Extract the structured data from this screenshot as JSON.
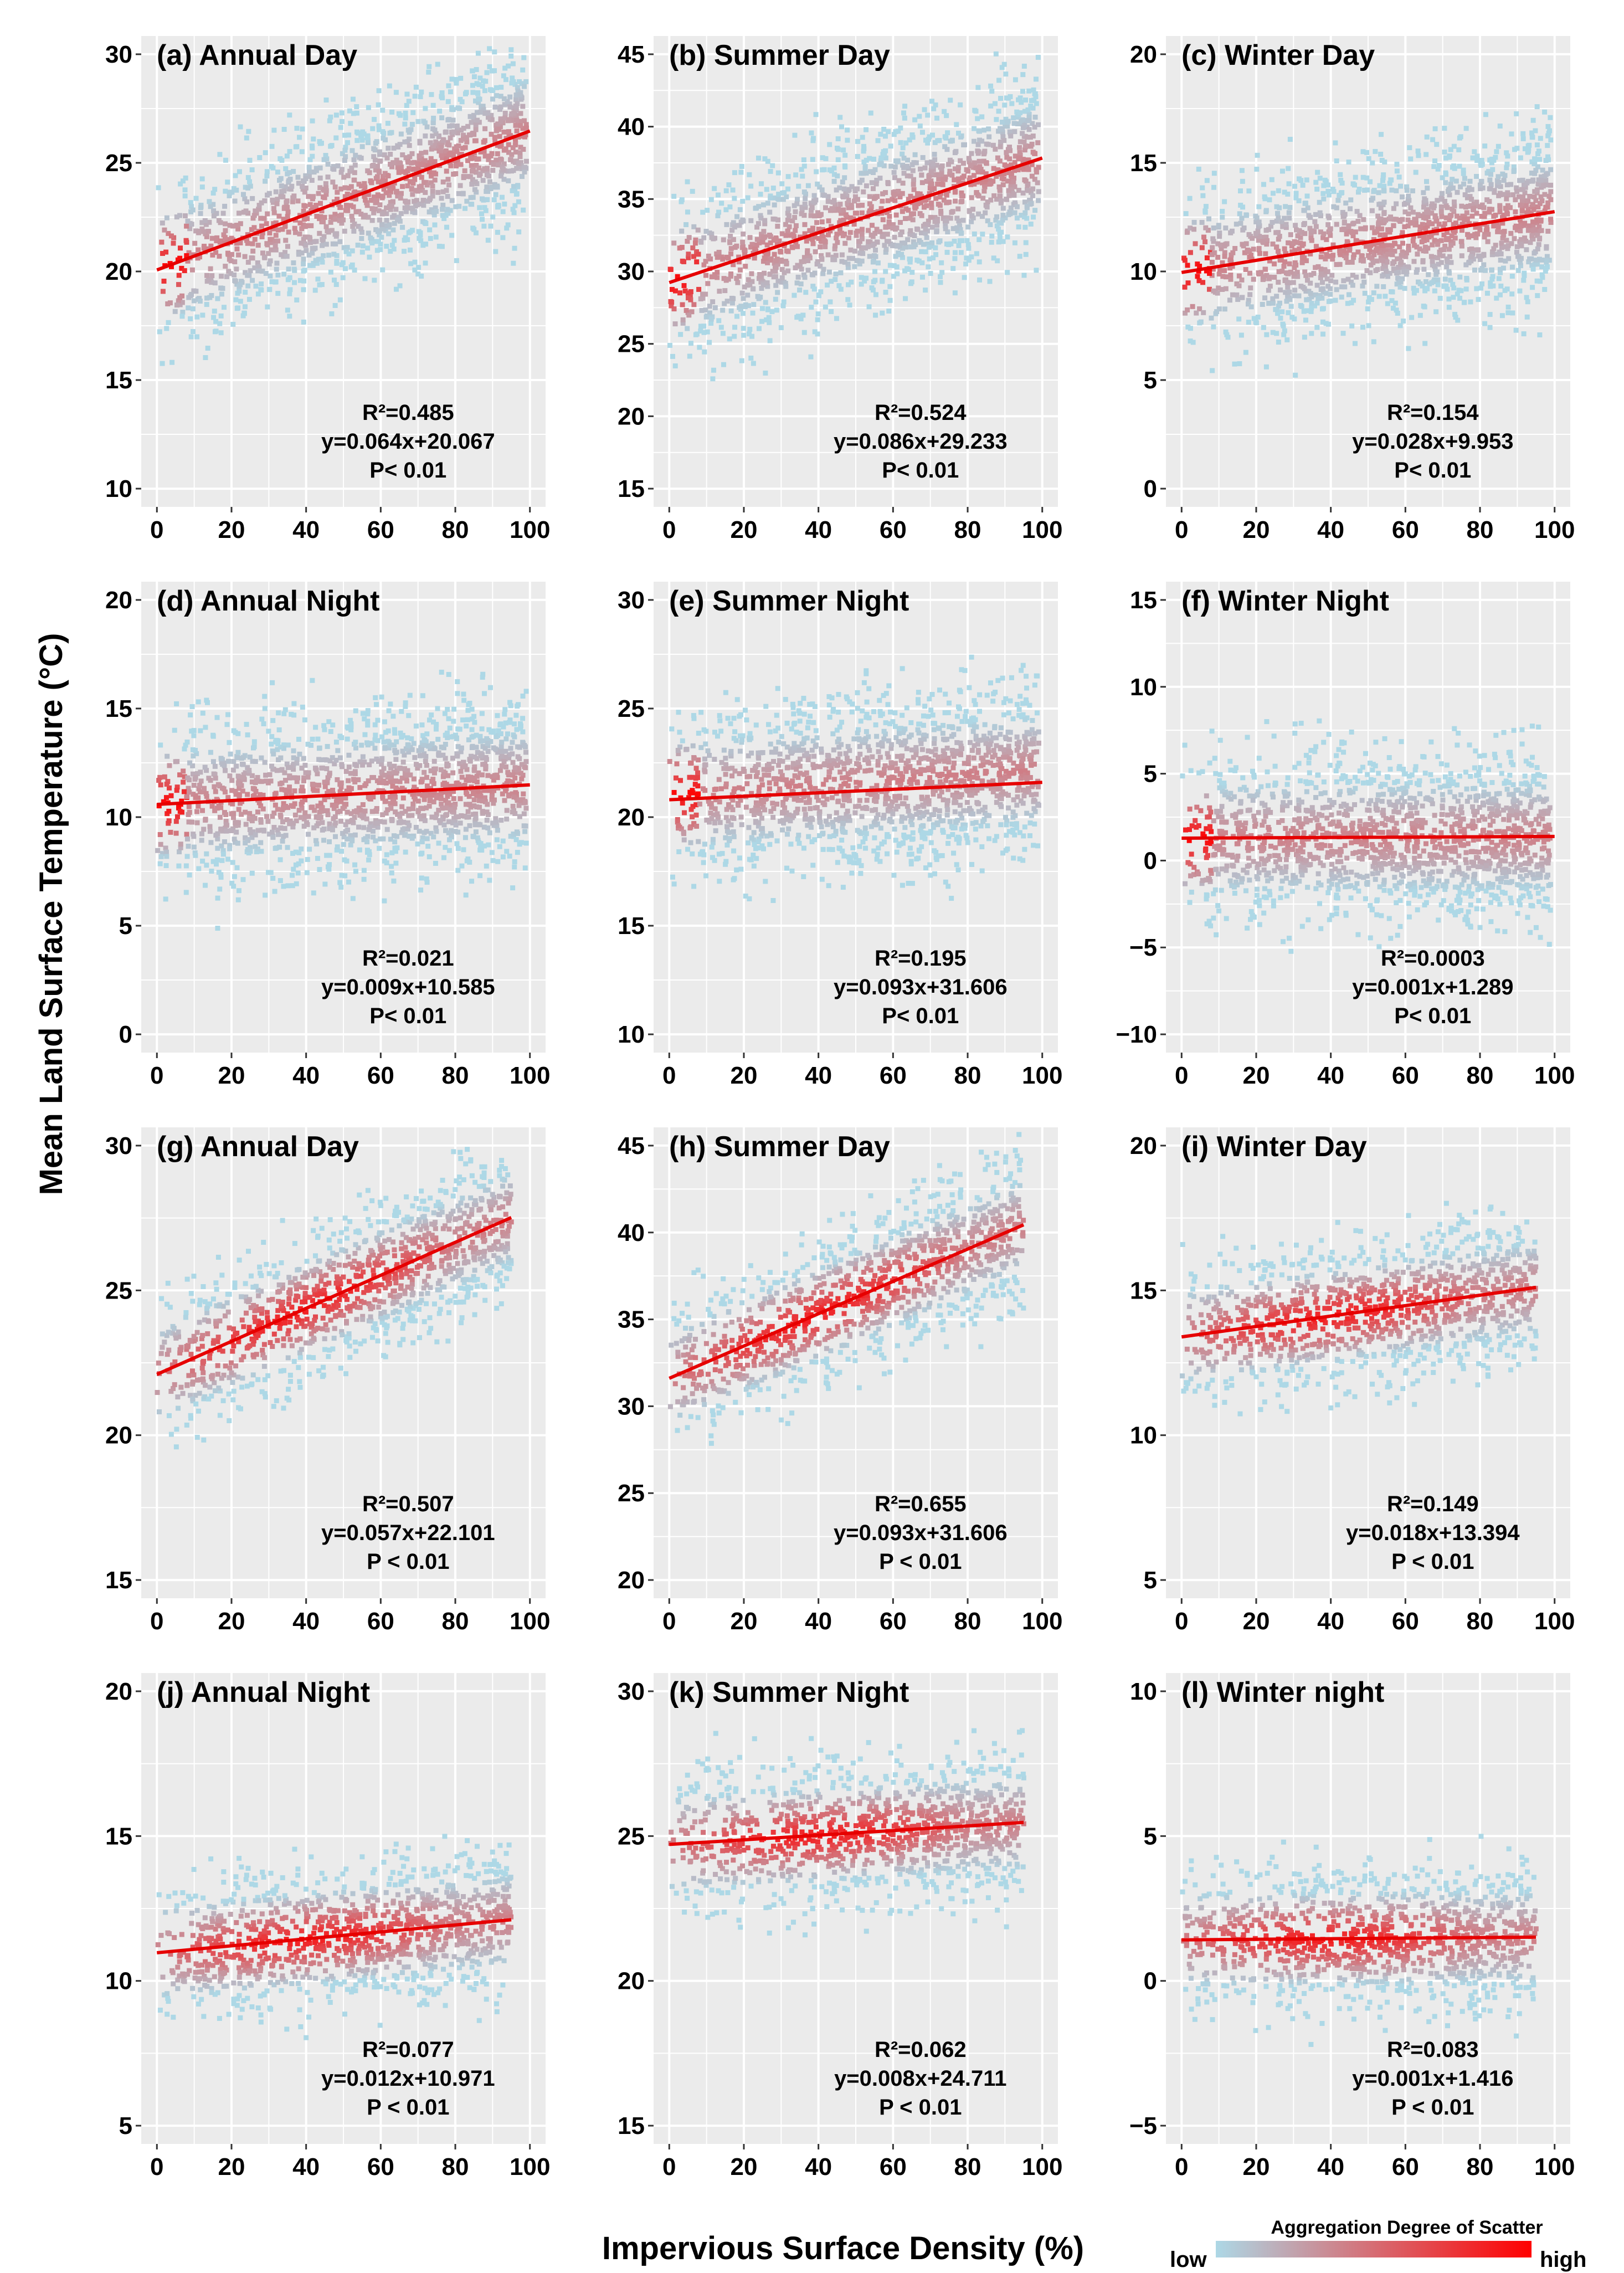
{
  "figure": {
    "ylabel": "Mean Land Surface Temperature (°C)",
    "xlabel": "Impervious Surface Density (%)",
    "legend": {
      "title": "Aggregation Degree of Scatter",
      "low": "low",
      "high": "high",
      "low_color": "#add8e6",
      "high_color": "#ff0000"
    }
  },
  "chart_data": [
    {
      "type": "scatter",
      "id": "a",
      "title": "(a) Annual Day",
      "xlim": [
        0,
        100
      ],
      "ylim": [
        10,
        30
      ],
      "yticks": [
        10,
        15,
        20,
        25,
        30
      ],
      "xticks": [
        0,
        20,
        40,
        60,
        80,
        100
      ],
      "slope": 0.064,
      "intercept": 20.067,
      "r2": "R²=0.485",
      "equation": "y=0.064x+20.067",
      "p": "P< 0.01"
    },
    {
      "type": "scatter",
      "id": "b",
      "title": "(b) Summer Day",
      "xlim": [
        0,
        100
      ],
      "ylim": [
        15,
        45
      ],
      "yticks": [
        15,
        20,
        25,
        30,
        35,
        40,
        45
      ],
      "xticks": [
        0,
        20,
        40,
        60,
        80,
        100
      ],
      "slope": 0.086,
      "intercept": 29.233,
      "r2": "R²=0.524",
      "equation": "y=0.086x+29.233",
      "p": "P< 0.01"
    },
    {
      "type": "scatter",
      "id": "c",
      "title": "(c) Winter Day",
      "xlim": [
        0,
        100
      ],
      "ylim": [
        0,
        20
      ],
      "yticks": [
        0,
        5,
        10,
        15,
        20
      ],
      "xticks": [
        0,
        20,
        40,
        60,
        80,
        100
      ],
      "slope": 0.028,
      "intercept": 9.953,
      "r2": "R²=0.154",
      "equation": "y=0.028x+9.953",
      "p": "P< 0.01"
    },
    {
      "type": "scatter",
      "id": "d",
      "title": "(d) Annual Night",
      "xlim": [
        0,
        100
      ],
      "ylim": [
        0,
        20
      ],
      "yticks": [
        0,
        5,
        10,
        15,
        20
      ],
      "xticks": [
        0,
        20,
        40,
        60,
        80,
        100
      ],
      "slope": 0.009,
      "intercept": 10.585,
      "r2": "R²=0.021",
      "equation": "y=0.009x+10.585",
      "p": "P< 0.01"
    },
    {
      "type": "scatter",
      "id": "e",
      "title": "(e) Summer Night",
      "xlim": [
        0,
        100
      ],
      "ylim": [
        10,
        30
      ],
      "yticks": [
        10,
        15,
        20,
        25,
        30
      ],
      "xticks": [
        0,
        20,
        40,
        60,
        80,
        100
      ],
      "slope": 0.093,
      "intercept": 31.606,
      "r2": "R²=0.195",
      "equation": "y=0.093x+31.606",
      "p": "P< 0.01"
    },
    {
      "type": "scatter",
      "id": "f",
      "title": "(f) Winter Night",
      "xlim": [
        0,
        100
      ],
      "ylim": [
        -10,
        15
      ],
      "yticks": [
        -10,
        -5,
        0,
        5,
        10,
        15
      ],
      "xticks": [
        0,
        20,
        40,
        60,
        80,
        100
      ],
      "slope": 0.001,
      "intercept": 1.289,
      "r2": "R²=0.0003",
      "equation": "y=0.001x+1.289",
      "p": "P< 0.01"
    },
    {
      "type": "scatter",
      "id": "g",
      "title": "(g) Annual Day",
      "xlim": [
        0,
        100
      ],
      "ylim": [
        15,
        30
      ],
      "yticks": [
        15,
        20,
        25,
        30
      ],
      "xticks": [
        0,
        20,
        40,
        60,
        80,
        100
      ],
      "slope": 0.057,
      "intercept": 22.101,
      "r2": "R²=0.507",
      "equation": "y=0.057x+22.101",
      "p": "P < 0.01"
    },
    {
      "type": "scatter",
      "id": "h",
      "title": "(h) Summer Day",
      "xlim": [
        0,
        100
      ],
      "ylim": [
        20,
        45
      ],
      "yticks": [
        20,
        25,
        30,
        35,
        40,
        45
      ],
      "xticks": [
        0,
        20,
        40,
        60,
        80,
        100
      ],
      "slope": 0.093,
      "intercept": 31.606,
      "r2": "R²=0.655",
      "equation": "y=0.093x+31.606",
      "p": "P < 0.01"
    },
    {
      "type": "scatter",
      "id": "i",
      "title": "(i) Winter Day",
      "xlim": [
        0,
        100
      ],
      "ylim": [
        5,
        20
      ],
      "yticks": [
        5,
        10,
        15,
        20
      ],
      "xticks": [
        0,
        20,
        40,
        60,
        80,
        100
      ],
      "slope": 0.018,
      "intercept": 13.394,
      "r2": "R²=0.149",
      "equation": "y=0.018x+13.394",
      "p": "P < 0.01"
    },
    {
      "type": "scatter",
      "id": "j",
      "title": "(j) Annual Night",
      "xlim": [
        0,
        100
      ],
      "ylim": [
        5,
        20
      ],
      "yticks": [
        5,
        10,
        15,
        20
      ],
      "xticks": [
        0,
        20,
        40,
        60,
        80,
        100
      ],
      "slope": 0.012,
      "intercept": 10.971,
      "r2": "R²=0.077",
      "equation": "y=0.012x+10.971",
      "p": "P < 0.01"
    },
    {
      "type": "scatter",
      "id": "k",
      "title": "(k) Summer Night",
      "xlim": [
        0,
        100
      ],
      "ylim": [
        15,
        30
      ],
      "yticks": [
        15,
        20,
        25,
        30
      ],
      "xticks": [
        0,
        20,
        40,
        60,
        80,
        100
      ],
      "slope": 0.008,
      "intercept": 24.711,
      "r2": "R²=0.062",
      "equation": "y=0.008x+24.711",
      "p": "P < 0.01"
    },
    {
      "type": "scatter",
      "id": "l",
      "title": "(l) Winter night",
      "xlim": [
        0,
        100
      ],
      "ylim": [
        -5,
        10
      ],
      "yticks": [
        -5,
        0,
        5,
        10
      ],
      "xticks": [
        0,
        20,
        40,
        60,
        80,
        100
      ],
      "slope": 0.001,
      "intercept": 1.416,
      "r2": "R²=0.083",
      "equation": "y=0.001x+1.416",
      "p": "P < 0.01"
    }
  ]
}
